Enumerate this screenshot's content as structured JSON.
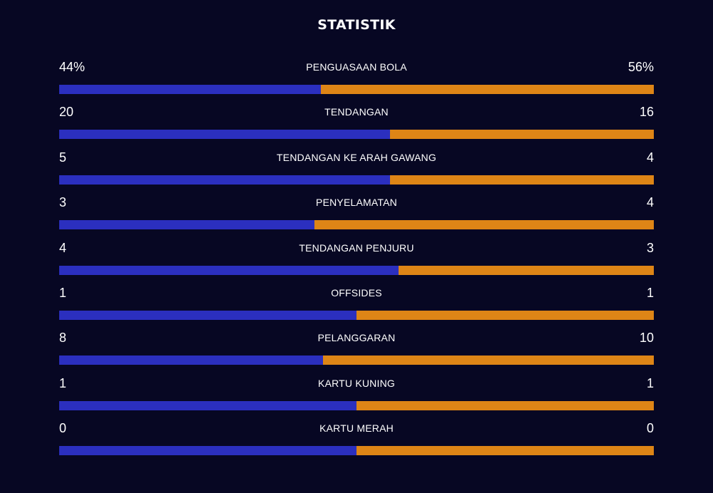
{
  "title": "STATISTIK",
  "colors": {
    "background": "#070723",
    "home_bar": "#2b2fbf",
    "away_bar": "#de8516",
    "text": "#ffffff"
  },
  "stats": [
    {
      "label": "PENGUASAAN BOLA",
      "left": "44%",
      "right": "56%",
      "left_share": 0.44
    },
    {
      "label": "TENDANGAN",
      "left": "20",
      "right": "16",
      "left_share": 0.556
    },
    {
      "label": "TENDANGAN KE ARAH GAWANG",
      "left": "5",
      "right": "4",
      "left_share": 0.556
    },
    {
      "label": "PENYELAMATAN",
      "left": "3",
      "right": "4",
      "left_share": 0.429
    },
    {
      "label": "TENDANGAN PENJURU",
      "left": "4",
      "right": "3",
      "left_share": 0.571
    },
    {
      "label": "OFFSIDES",
      "left": "1",
      "right": "1",
      "left_share": 0.5
    },
    {
      "label": "PELANGGARAN",
      "left": "8",
      "right": "10",
      "left_share": 0.444
    },
    {
      "label": "KARTU KUNING",
      "left": "1",
      "right": "1",
      "left_share": 0.5
    },
    {
      "label": "KARTU MERAH",
      "left": "0",
      "right": "0",
      "left_share": 0.5
    }
  ]
}
